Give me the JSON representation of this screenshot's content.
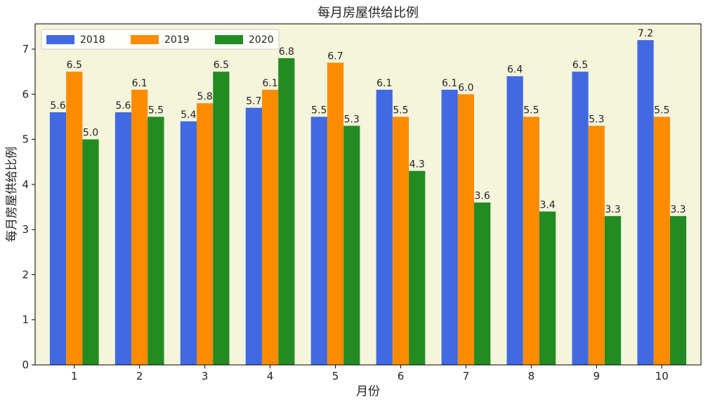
{
  "chart_data": {
    "type": "bar",
    "title": "每月房屋供给比例",
    "xlabel": "月份",
    "ylabel": "每月房屋供给比例",
    "categories": [
      "1",
      "2",
      "3",
      "4",
      "5",
      "6",
      "7",
      "8",
      "9",
      "10"
    ],
    "series": [
      {
        "name": "2018",
        "color": "#4169e1",
        "values": [
          5.6,
          5.6,
          5.4,
          5.7,
          5.5,
          6.1,
          6.1,
          6.4,
          6.5,
          7.2
        ]
      },
      {
        "name": "2019",
        "color": "#ff8c00",
        "values": [
          6.5,
          6.1,
          5.8,
          6.1,
          6.7,
          5.5,
          6.0,
          5.5,
          5.3,
          5.5
        ]
      },
      {
        "name": "2020",
        "color": "#228b22",
        "values": [
          5.0,
          5.5,
          6.5,
          6.8,
          5.3,
          4.3,
          3.6,
          3.4,
          3.3,
          3.3
        ]
      }
    ],
    "ylim": [
      0,
      7.56
    ],
    "yticks": [
      0,
      1,
      2,
      3,
      4,
      5,
      6,
      7
    ],
    "legend": {
      "placement": "top-left",
      "columns": 3
    },
    "grid": false,
    "plot_background": "#f5f5dc",
    "data_labels": true
  }
}
